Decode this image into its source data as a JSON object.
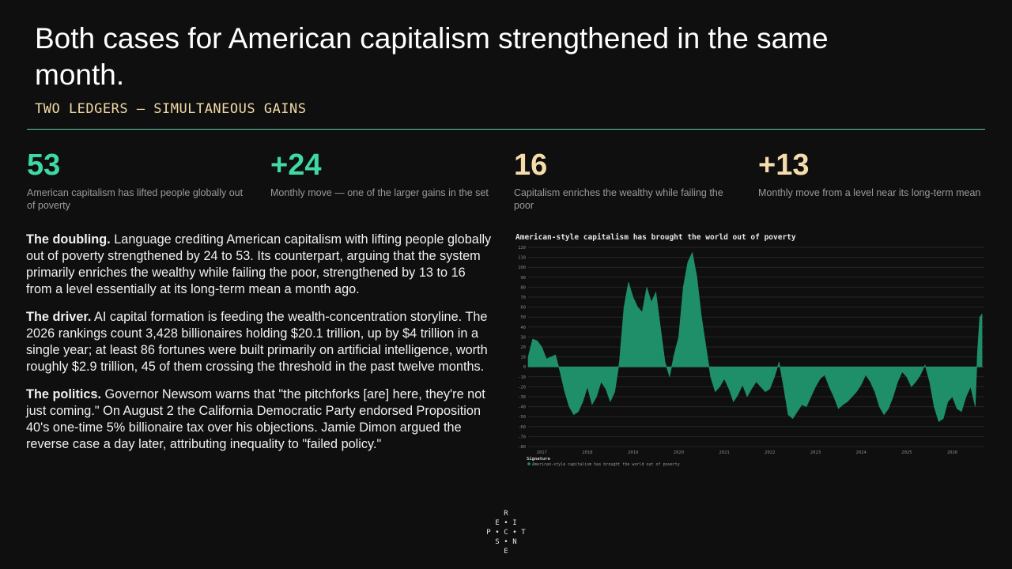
{
  "header": {
    "title": "Both cases for American capitalism strengthened in the same month.",
    "subtitle": "TWO LEDGERS — SIMULTANEOUS GAINS"
  },
  "stats": [
    {
      "value": "53",
      "label": "American capitalism has lifted people globally out of poverty",
      "color": "#3fd9a3"
    },
    {
      "value": "+24",
      "label": "Monthly move — one of the larger gains in the set",
      "color": "#3fd9a3"
    },
    {
      "value": "16",
      "label": "Capitalism enriches the wealthy while failing the poor",
      "color": "#f5dcaa"
    },
    {
      "value": "+13",
      "label": "Monthly move from a level near its long-term mean",
      "color": "#f5dcaa"
    }
  ],
  "paragraphs": [
    {
      "lead": "The doubling.",
      "text": " Language crediting American capitalism with lifting people globally out of poverty strengthened by 24 to 53. Its counterpart, arguing that the system primarily enriches the wealthy while failing the poor, strengthened by 13 to 16 from a level essentially at its long-term mean a month ago."
    },
    {
      "lead": "The driver.",
      "text": " AI capital formation is feeding the wealth-concentration storyline. The 2026 rankings count 3,428 billionaires holding $20.1 trillion, up by $4 trillion in a single year; at least 86 fortunes were built primarily on artificial intelligence, worth roughly $2.9 trillion, 45 of them crossing the threshold in the past twelve months."
    },
    {
      "lead": "The politics.",
      "text": " Governor Newsom warns that \"the pitchforks [are] here, they're not just coming.\" On August 2 the California Democratic Party endorsed Proposition 40's one-time 5% billionaire tax over his objections. Jamie Dimon argued the reverse case a day later, attributing inequality to \"failed policy.\""
    }
  ],
  "chart_data": {
    "type": "area",
    "title": "American-style capitalism has brought the world out of poverty",
    "ylim": [
      -80,
      120
    ],
    "yticks": [
      120,
      110,
      100,
      90,
      80,
      70,
      60,
      50,
      40,
      30,
      20,
      10,
      0,
      -10,
      -20,
      -30,
      -40,
      -50,
      -60,
      -70,
      -80
    ],
    "xticks": [
      "2017",
      "2018",
      "2019",
      "2020",
      "2021",
      "2022",
      "2023",
      "2024",
      "2025",
      "2026"
    ],
    "xlim": [
      2016.7,
      2026.7
    ],
    "grid": true,
    "legend_title": "Signature",
    "series": [
      {
        "name": "American-style capitalism has brought the world out of poverty",
        "color": "#1f8f6a",
        "x": [
          2016.7,
          2016.8,
          2016.9,
          2017.0,
          2017.1,
          2017.2,
          2017.3,
          2017.4,
          2017.5,
          2017.6,
          2017.7,
          2017.8,
          2017.9,
          2018.0,
          2018.1,
          2018.2,
          2018.3,
          2018.4,
          2018.5,
          2018.6,
          2018.7,
          2018.8,
          2018.9,
          2019.0,
          2019.1,
          2019.2,
          2019.3,
          2019.4,
          2019.5,
          2019.6,
          2019.7,
          2019.8,
          2019.9,
          2020.0,
          2020.1,
          2020.2,
          2020.3,
          2020.4,
          2020.5,
          2020.6,
          2020.7,
          2020.8,
          2020.9,
          2021.0,
          2021.1,
          2021.2,
          2021.3,
          2021.4,
          2021.5,
          2021.6,
          2021.7,
          2021.8,
          2021.9,
          2022.0,
          2022.1,
          2022.2,
          2022.3,
          2022.4,
          2022.5,
          2022.6,
          2022.7,
          2022.8,
          2022.9,
          2023.0,
          2023.1,
          2023.2,
          2023.3,
          2023.4,
          2023.5,
          2023.6,
          2023.7,
          2023.8,
          2023.9,
          2024.0,
          2024.1,
          2024.2,
          2024.3,
          2024.4,
          2024.5,
          2024.6,
          2024.7,
          2024.8,
          2024.9,
          2025.0,
          2025.1,
          2025.2,
          2025.3,
          2025.4,
          2025.5,
          2025.6,
          2025.7,
          2025.8,
          2025.9,
          2026.0,
          2026.1,
          2026.2,
          2026.3,
          2026.4,
          2026.5,
          2026.55,
          2026.6,
          2026.65
        ],
        "values": [
          10,
          28,
          26,
          20,
          8,
          10,
          12,
          -5,
          -25,
          -40,
          -48,
          -45,
          -35,
          -20,
          -38,
          -30,
          -15,
          -22,
          -35,
          -25,
          5,
          60,
          85,
          70,
          60,
          55,
          80,
          65,
          75,
          40,
          5,
          -10,
          12,
          30,
          80,
          105,
          115,
          90,
          50,
          20,
          -10,
          -25,
          -20,
          -12,
          -22,
          -35,
          -28,
          -18,
          -30,
          -22,
          -15,
          -20,
          -25,
          -22,
          -10,
          5,
          -20,
          -48,
          -52,
          -45,
          -38,
          -40,
          -30,
          -20,
          -12,
          -8,
          -20,
          -30,
          -42,
          -38,
          -35,
          -30,
          -25,
          -18,
          -8,
          -15,
          -25,
          -40,
          -48,
          -42,
          -30,
          -15,
          -5,
          -10,
          -20,
          -15,
          -8,
          2,
          -15,
          -40,
          -55,
          -52,
          -35,
          -30,
          -42,
          -45,
          -30,
          -20,
          -40,
          15,
          50,
          53
        ]
      }
    ]
  },
  "logo": {
    "letters": [
      "R",
      "E",
      "I",
      "P",
      "C",
      "T",
      "S",
      "N",
      "E"
    ],
    "dots": [
      "•",
      "•",
      "•",
      "•"
    ]
  }
}
